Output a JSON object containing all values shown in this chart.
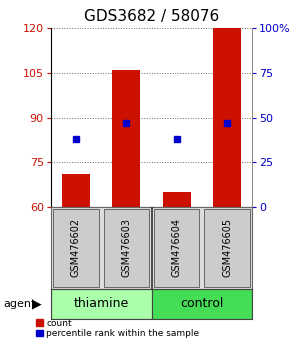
{
  "title": "GDS3682 / 58076",
  "samples": [
    "GSM476602",
    "GSM476603",
    "GSM476604",
    "GSM476605"
  ],
  "group_labels": [
    "thiamine",
    "control"
  ],
  "bar_bottoms": [
    60,
    60,
    60,
    60
  ],
  "bar_tops": [
    71,
    106,
    65,
    120
  ],
  "bar_color": "#CC1100",
  "dot_values_pct": [
    38,
    47,
    38,
    47
  ],
  "dot_color": "#0000CC",
  "ylim_left": [
    60,
    120
  ],
  "yticks_left": [
    60,
    75,
    90,
    105,
    120
  ],
  "ylim_right": [
    0,
    100
  ],
  "yticks_right": [
    0,
    25,
    50,
    75,
    100
  ],
  "yticklabels_right": [
    "0",
    "25",
    "50",
    "75",
    "100%"
  ],
  "bar_width": 0.55,
  "bg_color": "#ffffff",
  "label_color_left": "#CC1100",
  "label_color_right": "#0000CC",
  "legend_count_label": "count",
  "legend_pct_label": "percentile rank within the sample",
  "agent_label": "agent",
  "thiamine_color": "#aaffaa",
  "control_color": "#44dd55",
  "sample_box_color": "#cccccc",
  "title_fontsize": 11,
  "tick_fontsize": 8,
  "sample_fontsize": 7,
  "group_fontsize": 9
}
